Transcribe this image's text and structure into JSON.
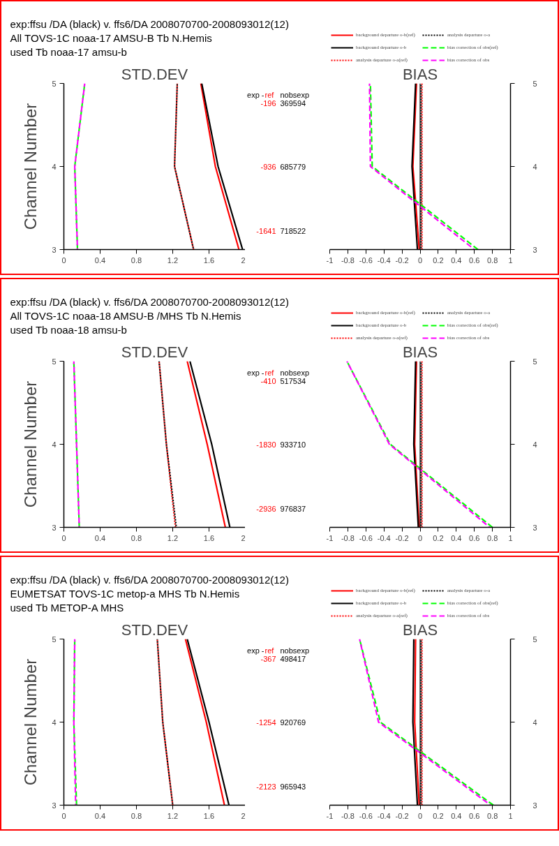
{
  "chart_data": [
    {
      "type": "line",
      "title": "exp:ffsu /DA (black)  v. ffs6/DA 2008070700-2008093012(12)\nAll TOVS-1C noaa-17 AMSU-B Tb  N.Hemis\nused Tb noaa-17 amsu-b",
      "subtitle": "STD.DEV",
      "ylabel": "Channel Number",
      "xlim": [
        0,
        2
      ],
      "xticks": [
        0,
        0.4,
        0.8,
        1.2,
        1.6,
        2
      ],
      "ylim": [
        3,
        5
      ],
      "yticks": [
        3,
        4,
        5
      ],
      "annotations": [
        "exp -",
        "ref",
        "nobsexp",
        "-196",
        "369594",
        "-936",
        "685779",
        "-1641",
        "718522"
      ],
      "series": [
        {
          "color": "#ff0000",
          "line_style": "solid",
          "x": [
            1.93,
            1.67,
            1.51
          ],
          "values": [
            3,
            4,
            5
          ]
        },
        {
          "color": "#000000",
          "line_style": "solid",
          "x": [
            1.97,
            1.7,
            1.52
          ],
          "values": [
            3,
            4,
            5
          ]
        },
        {
          "color": "#ff0000",
          "line_style": "dotted",
          "x": [
            1.43,
            1.22,
            1.25
          ],
          "values": [
            3,
            4,
            5
          ]
        },
        {
          "color": "#000000",
          "line_style": "dotted",
          "x": [
            1.43,
            1.22,
            1.25
          ],
          "values": [
            3,
            4,
            5
          ]
        },
        {
          "color": "#00ff00",
          "line_style": "dashed",
          "x": [
            0.15,
            0.12,
            0.23
          ],
          "values": [
            3,
            4,
            5
          ]
        },
        {
          "color": "#ff00ff",
          "line_style": "dashed",
          "x": [
            0.15,
            0.12,
            0.23
          ],
          "values": [
            3,
            4,
            5
          ]
        }
      ]
    },
    {
      "type": "line",
      "subtitle": "BIAS",
      "legend": "top",
      "xlim": [
        -1,
        1
      ],
      "xticks": [
        -1,
        -0.8,
        -0.6,
        -0.4,
        -0.2,
        0,
        0.2,
        0.4,
        0.6,
        0.8,
        1
      ],
      "ylim": [
        3,
        5
      ],
      "yticks": [
        3,
        4,
        5
      ],
      "ref_lines": [
        {
          "axis": "x",
          "value": 0,
          "color": "#000000"
        }
      ],
      "series": [
        {
          "name": "background departure o-b(ref)",
          "color": "#ff0000",
          "line_style": "solid",
          "x": [
            -0.01,
            -0.08,
            -0.04
          ],
          "values": [
            3,
            4,
            5
          ]
        },
        {
          "name": "background departure o-b",
          "color": "#000000",
          "line_style": "solid",
          "x": [
            -0.03,
            -0.09,
            -0.05
          ],
          "values": [
            3,
            4,
            5
          ]
        },
        {
          "name": "analysis departure o-a(ref)",
          "color": "#ff0000",
          "line_style": "dotted",
          "x": [
            0.02,
            0.02,
            0.02
          ],
          "values": [
            3,
            4,
            5
          ]
        },
        {
          "name": "analysis departure o-a",
          "color": "#000000",
          "line_style": "dotted",
          "x": [
            0.01,
            0.01,
            0.01
          ],
          "values": [
            3,
            4,
            5
          ]
        },
        {
          "name": "bias correction of obs(ref)",
          "color": "#00ff00",
          "line_style": "dashed",
          "x": [
            0.64,
            -0.53,
            -0.55
          ],
          "values": [
            3,
            4,
            5
          ]
        },
        {
          "name": "bias correction of obs",
          "color": "#ff00ff",
          "line_style": "dashed",
          "x": [
            0.6,
            -0.55,
            -0.56
          ],
          "values": [
            3,
            4,
            5
          ]
        }
      ]
    },
    {
      "type": "line",
      "title": "exp:ffsu /DA (black)  v. ffs6/DA 2008070700-2008093012(12)\nAll TOVS-1C noaa-18 AMSU-B /MHS Tb  N.Hemis\nused Tb noaa-18 amsu-b",
      "subtitle": "STD.DEV",
      "ylabel": "Channel Number",
      "xlim": [
        0,
        2
      ],
      "xticks": [
        0,
        0.4,
        0.8,
        1.2,
        1.6,
        2
      ],
      "ylim": [
        3,
        5
      ],
      "yticks": [
        3,
        4,
        5
      ],
      "annotations": [
        "exp -",
        "ref",
        "nobsexp",
        "-410",
        "517534",
        "-1830",
        "933710",
        "-2936",
        "976837"
      ],
      "series": [
        {
          "color": "#ff0000",
          "line_style": "solid",
          "x": [
            1.78,
            1.58,
            1.36
          ],
          "values": [
            3,
            4,
            5
          ]
        },
        {
          "color": "#000000",
          "line_style": "solid",
          "x": [
            1.83,
            1.63,
            1.39
          ],
          "values": [
            3,
            4,
            5
          ]
        },
        {
          "color": "#ff0000",
          "line_style": "dotted",
          "x": [
            1.23,
            1.13,
            1.05
          ],
          "values": [
            3,
            4,
            5
          ]
        },
        {
          "color": "#000000",
          "line_style": "dotted",
          "x": [
            1.24,
            1.13,
            1.05
          ],
          "values": [
            3,
            4,
            5
          ]
        },
        {
          "color": "#00ff00",
          "line_style": "dashed",
          "x": [
            0.17,
            0.14,
            0.11
          ],
          "values": [
            3,
            4,
            5
          ]
        },
        {
          "color": "#ff00ff",
          "line_style": "dashed",
          "x": [
            0.17,
            0.14,
            0.11
          ],
          "values": [
            3,
            4,
            5
          ]
        }
      ]
    },
    {
      "type": "line",
      "subtitle": "BIAS",
      "legend": "top",
      "xlim": [
        -1,
        1
      ],
      "xticks": [
        -1,
        -0.8,
        -0.6,
        -0.4,
        -0.2,
        0,
        0.2,
        0.4,
        0.6,
        0.8,
        1
      ],
      "ylim": [
        3,
        5
      ],
      "yticks": [
        3,
        4,
        5
      ],
      "ref_lines": [
        {
          "axis": "x",
          "value": 0,
          "color": "#000000"
        }
      ],
      "series": [
        {
          "name": "background departure o-b(ref)",
          "color": "#ff0000",
          "line_style": "solid",
          "x": [
            -0.01,
            -0.06,
            -0.04
          ],
          "values": [
            3,
            4,
            5
          ]
        },
        {
          "name": "background departure o-b",
          "color": "#000000",
          "line_style": "solid",
          "x": [
            -0.02,
            -0.07,
            -0.05
          ],
          "values": [
            3,
            4,
            5
          ]
        },
        {
          "name": "analysis departure o-a(ref)",
          "color": "#ff0000",
          "line_style": "dotted",
          "x": [
            0.02,
            0.02,
            0.02
          ],
          "values": [
            3,
            4,
            5
          ]
        },
        {
          "name": "analysis departure o-a",
          "color": "#000000",
          "line_style": "dotted",
          "x": [
            0.01,
            0.01,
            0.01
          ],
          "values": [
            3,
            4,
            5
          ]
        },
        {
          "name": "bias correction of obs(ref)",
          "color": "#00ff00",
          "line_style": "dashed",
          "x": [
            0.8,
            -0.33,
            -0.81
          ],
          "values": [
            3,
            4,
            5
          ]
        },
        {
          "name": "bias correction of obs",
          "color": "#ff00ff",
          "line_style": "dashed",
          "x": [
            0.77,
            -0.34,
            -0.81
          ],
          "values": [
            3,
            4,
            5
          ]
        }
      ]
    },
    {
      "type": "line",
      "title": "exp:ffsu /DA (black)  v. ffs6/DA 2008070700-2008093012(12)\nEUMETSAT TOVS-1C metop-a MHS Tb  N.Hemis\nused Tb METOP-A MHS",
      "subtitle": "STD.DEV",
      "ylabel": "Channel Number",
      "xlim": [
        0,
        2
      ],
      "xticks": [
        0,
        0.4,
        0.8,
        1.2,
        1.6,
        2
      ],
      "ylim": [
        3,
        5
      ],
      "yticks": [
        3,
        4,
        5
      ],
      "annotations": [
        "exp -",
        "ref",
        "nobsexp",
        "-367",
        "498417",
        "-1254",
        "920769",
        "-2123",
        "965943"
      ],
      "series": [
        {
          "color": "#ff0000",
          "line_style": "solid",
          "x": [
            1.77,
            1.57,
            1.34
          ],
          "values": [
            3,
            4,
            5
          ]
        },
        {
          "color": "#000000",
          "line_style": "solid",
          "x": [
            1.82,
            1.6,
            1.36
          ],
          "values": [
            3,
            4,
            5
          ]
        },
        {
          "color": "#ff0000",
          "line_style": "dotted",
          "x": [
            1.2,
            1.09,
            1.03
          ],
          "values": [
            3,
            4,
            5
          ]
        },
        {
          "color": "#000000",
          "line_style": "dotted",
          "x": [
            1.2,
            1.09,
            1.03
          ],
          "values": [
            3,
            4,
            5
          ]
        },
        {
          "color": "#00ff00",
          "line_style": "dashed",
          "x": [
            0.14,
            0.11,
            0.12
          ],
          "values": [
            3,
            4,
            5
          ]
        },
        {
          "color": "#ff00ff",
          "line_style": "dashed",
          "x": [
            0.13,
            0.11,
            0.12
          ],
          "values": [
            3,
            4,
            5
          ]
        }
      ]
    },
    {
      "type": "line",
      "subtitle": "BIAS",
      "legend": "top",
      "xlim": [
        -1,
        1
      ],
      "xticks": [
        -1,
        -0.8,
        -0.6,
        -0.4,
        -0.2,
        0,
        0.2,
        0.4,
        0.6,
        0.8,
        1
      ],
      "ylim": [
        3,
        5
      ],
      "yticks": [
        3,
        4,
        5
      ],
      "ref_lines": [
        {
          "axis": "x",
          "value": 0,
          "color": "#000000"
        }
      ],
      "series": [
        {
          "name": "background departure o-b(ref)",
          "color": "#ff0000",
          "line_style": "solid",
          "x": [
            -0.01,
            -0.06,
            -0.05
          ],
          "values": [
            3,
            4,
            5
          ]
        },
        {
          "name": "background departure o-b",
          "color": "#000000",
          "line_style": "solid",
          "x": [
            -0.03,
            -0.08,
            -0.07
          ],
          "values": [
            3,
            4,
            5
          ]
        },
        {
          "name": "analysis departure o-a(ref)",
          "color": "#ff0000",
          "line_style": "dotted",
          "x": [
            0.02,
            0.02,
            0.02
          ],
          "values": [
            3,
            4,
            5
          ]
        },
        {
          "name": "analysis departure o-a",
          "color": "#000000",
          "line_style": "dotted",
          "x": [
            0.01,
            0.01,
            0.01
          ],
          "values": [
            3,
            4,
            5
          ]
        },
        {
          "name": "bias correction of obs(ref)",
          "color": "#00ff00",
          "line_style": "dashed",
          "x": [
            0.81,
            -0.44,
            -0.67
          ],
          "values": [
            3,
            4,
            5
          ]
        },
        {
          "name": "bias correction of obs",
          "color": "#ff00ff",
          "line_style": "dashed",
          "x": [
            0.78,
            -0.46,
            -0.67
          ],
          "values": [
            3,
            4,
            5
          ]
        }
      ]
    }
  ]
}
